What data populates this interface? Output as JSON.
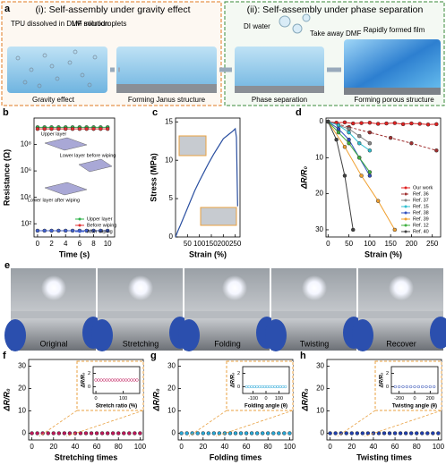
{
  "panels": {
    "a": {
      "label": "a",
      "title_i": "(i): Self-assembly under gravity effect",
      "title_ii": "(ii): Self-assembly under phase separation",
      "tpu": "TPU dissolved in DMF solution",
      "lm": "LM microdroplets",
      "gravity": "Gravity effect",
      "janus": "Forming Janus structure",
      "water": "DI water",
      "dmf": "Take away DMF",
      "film": "Rapidly formed film",
      "phase": "Phase separation",
      "porous": "Forming porous structure"
    },
    "e": {
      "label": "e",
      "frames": [
        "Original",
        "Stretching",
        "Folding",
        "Twisting",
        "Recover"
      ]
    }
  },
  "chart_data": [
    {
      "type": "line",
      "label": "b",
      "xlabel": "Time (s)",
      "ylabel": "Resistance (Ω)",
      "ylog": true,
      "xlim": [
        -0.5,
        11
      ],
      "xticks": [
        0,
        2,
        4,
        6,
        8,
        10
      ],
      "ylim": [
        10,
        10000000000
      ],
      "yticks": [
        {
          "value": 100,
          "label": "10²"
        },
        {
          "value": 10000,
          "label": "10⁴"
        },
        {
          "value": 1000000,
          "label": "10⁶"
        },
        {
          "value": 100000000,
          "label": "10⁸"
        }
      ],
      "x": [
        0,
        1,
        2,
        3,
        4,
        5,
        6,
        7,
        8,
        9,
        10
      ],
      "legend": "lower right",
      "series": [
        {
          "name": "Upper layer",
          "color": "#2db34a",
          "values": [
            2000000000,
            2000000000,
            2000000000,
            2000000000,
            2000000000,
            2000000000,
            2000000000,
            2000000000,
            2000000000,
            2000000000,
            2000000000
          ]
        },
        {
          "name": "Before wiping",
          "color": "#e03030",
          "values": [
            1500000000,
            1500000000,
            1500000000,
            1500000000,
            1500000000,
            1500000000,
            1500000000,
            1500000000,
            1500000000,
            1500000000,
            1500000000
          ]
        },
        {
          "name": "After wiping",
          "color": "#4060d0",
          "values": [
            30,
            30,
            30,
            30,
            30,
            30,
            30,
            30,
            30,
            30,
            30
          ]
        }
      ],
      "annotations": [
        "Upper layer",
        "Lower layer before wiping",
        "Lower layer after wiping"
      ]
    },
    {
      "type": "line",
      "label": "c",
      "xlabel": "Strain (%)",
      "ylabel": "Stress (MPa)",
      "xlim": [
        0,
        270
      ],
      "xticks": [
        50,
        100,
        150,
        200,
        250
      ],
      "ylim": [
        0,
        15.5
      ],
      "yticks": [
        0,
        5,
        10,
        15
      ],
      "x": [
        0,
        10,
        20,
        40,
        60,
        80,
        100,
        120,
        140,
        160,
        180,
        200,
        220,
        240,
        250,
        255,
        260
      ],
      "color": "#2a4fa0",
      "values": [
        0,
        0.8,
        1.5,
        3,
        4.5,
        6,
        7.3,
        8.5,
        9.7,
        10.8,
        11.8,
        12.8,
        13.3,
        13.8,
        14.1,
        13,
        4
      ]
    },
    {
      "type": "line",
      "label": "d",
      "xlabel": "Strain (%)",
      "ylabel": "ΔR/R₀",
      "y_inverted": true,
      "xlim": [
        -5,
        270
      ],
      "xticks": [
        0,
        50,
        100,
        150,
        200,
        250
      ],
      "ylim": [
        -1,
        32
      ],
      "yticks": [
        0,
        10,
        20,
        30
      ],
      "legend": "lower right",
      "series": [
        {
          "name": "Our work",
          "color": "#e02020",
          "x": [
            0,
            20,
            40,
            60,
            80,
            100,
            120,
            140,
            160,
            180,
            200,
            220,
            240,
            260
          ],
          "values": [
            0,
            0.3,
            0.2,
            0.5,
            0.4,
            0.3,
            0.6,
            0.5,
            0.4,
            0.7,
            0.5,
            0.6,
            0.8,
            0.7
          ]
        },
        {
          "name": "Ref. 36",
          "color": "#a03030",
          "dashed": true,
          "x": [
            0,
            50,
            100,
            150,
            200,
            260
          ],
          "values": [
            0,
            1.5,
            3,
            4.5,
            6,
            8
          ]
        },
        {
          "name": "Ref. 37",
          "color": "#888888",
          "x": [
            0,
            25,
            50,
            75,
            100
          ],
          "values": [
            0,
            1,
            2,
            4,
            6
          ]
        },
        {
          "name": "Ref. 15",
          "color": "#30c0d0",
          "x": [
            0,
            25,
            50,
            75,
            100
          ],
          "values": [
            0,
            1,
            3,
            6,
            8
          ]
        },
        {
          "name": "Ref. 38",
          "color": "#3050c0",
          "x": [
            0,
            25,
            50,
            75,
            100
          ],
          "values": [
            0,
            2,
            5,
            10,
            15
          ]
        },
        {
          "name": "Ref. 39",
          "color": "#f0a030",
          "x": [
            0,
            40,
            80,
            120,
            160
          ],
          "values": [
            0,
            7,
            15,
            22,
            30
          ]
        },
        {
          "name": "Ref. 12",
          "color": "#40b040",
          "x": [
            0,
            25,
            50,
            75,
            100
          ],
          "values": [
            0,
            3,
            6,
            10,
            14
          ]
        },
        {
          "name": "Ref. 40",
          "color": "#404040",
          "x": [
            0,
            20,
            40,
            60
          ],
          "values": [
            0,
            5,
            15,
            30
          ]
        }
      ]
    },
    {
      "type": "scatter",
      "label": "f",
      "xlabel": "Stretching times",
      "ylabel": "ΔR/R₀",
      "color": "#c0185a",
      "xlim": [
        -3,
        103
      ],
      "xticks": [
        0,
        20,
        40,
        60,
        80,
        100
      ],
      "ylim": [
        -3,
        33
      ],
      "yticks": [
        0,
        10,
        20,
        30
      ],
      "x": [
        0,
        5,
        10,
        15,
        20,
        25,
        30,
        35,
        40,
        45,
        50,
        55,
        60,
        65,
        70,
        75,
        80,
        85,
        90,
        95,
        100
      ],
      "values": [
        0,
        0,
        0,
        0,
        0,
        0,
        0,
        0,
        0,
        0,
        0,
        0,
        0,
        0,
        0,
        0,
        0,
        0,
        0,
        0,
        0
      ]
    },
    {
      "type": "scatter",
      "xlabel": "Stretch ratio (%)",
      "ylabel": "ΔR/R₀",
      "color": "#c0185a",
      "marker": "open",
      "xlim": [
        -10,
        160
      ],
      "xticks": [
        0,
        100
      ],
      "ylim": [
        -1,
        3
      ],
      "yticks": [
        0,
        2
      ],
      "x": [
        0,
        10,
        20,
        30,
        40,
        50,
        60,
        70,
        80,
        90,
        100,
        110,
        120,
        130,
        140,
        150
      ],
      "values": [
        1,
        1,
        1,
        1,
        1,
        1,
        1,
        1,
        1,
        1,
        1,
        1,
        1,
        1,
        1,
        1
      ]
    },
    {
      "type": "scatter",
      "label": "g",
      "xlabel": "Folding times",
      "ylabel": "ΔR/R₀",
      "color": "#29a8d8",
      "xlim": [
        -3,
        103
      ],
      "xticks": [
        0,
        20,
        40,
        60,
        80,
        100
      ],
      "ylim": [
        -3,
        33
      ],
      "yticks": [
        0,
        10,
        20,
        30
      ],
      "x": [
        0,
        5,
        10,
        15,
        20,
        25,
        30,
        35,
        40,
        45,
        50,
        55,
        60,
        65,
        70,
        75,
        80,
        85,
        90,
        95,
        100
      ],
      "values": [
        0,
        0,
        0,
        0,
        0,
        0,
        0,
        0,
        0,
        0,
        0,
        0,
        0,
        0,
        0,
        0,
        0,
        0,
        0,
        0,
        0
      ]
    },
    {
      "type": "scatter",
      "xlabel": "Folding angle (θ)",
      "ylabel": "ΔR/R₀",
      "color": "#29a8d8",
      "marker": "open",
      "xlim": [
        -180,
        180
      ],
      "xticks": [
        -100,
        0,
        100
      ],
      "ylim": [
        -1,
        3
      ],
      "yticks": [
        0,
        2
      ],
      "x": [
        -150,
        -130,
        -110,
        -90,
        -70,
        -50,
        -30,
        -10,
        10,
        30,
        50,
        70,
        90,
        110,
        130,
        150
      ],
      "values": [
        0,
        0,
        0,
        0,
        0,
        0,
        0,
        0,
        0,
        0,
        0,
        0,
        0,
        0,
        0,
        0
      ]
    },
    {
      "type": "scatter",
      "label": "h",
      "xlabel": "Twisting times",
      "ylabel": "ΔR/R₀",
      "color": "#2040b0",
      "xlim": [
        -3,
        103
      ],
      "xticks": [
        0,
        20,
        40,
        60,
        80,
        100
      ],
      "ylim": [
        -3,
        33
      ],
      "yticks": [
        0,
        10,
        20,
        30
      ],
      "x": [
        0,
        5,
        10,
        15,
        20,
        25,
        30,
        35,
        40,
        45,
        50,
        55,
        60,
        65,
        70,
        75,
        80,
        85,
        90,
        95,
        100
      ],
      "values": [
        0,
        0,
        0,
        0,
        0,
        0,
        0,
        0,
        0,
        0,
        0,
        0,
        0,
        0,
        0,
        0,
        0,
        0,
        0,
        0,
        0
      ]
    },
    {
      "type": "scatter",
      "xlabel": "Twisting angle (θ)",
      "ylabel": "ΔR/R₀",
      "color": "#2040b0",
      "marker": "open",
      "xlim": [
        -300,
        300
      ],
      "xticks": [
        -200,
        0,
        200
      ],
      "ylim": [
        -1,
        3
      ],
      "yticks": [
        0,
        2
      ],
      "x": [
        -250,
        -200,
        -150,
        -100,
        -50,
        0,
        50,
        100,
        150,
        200,
        250
      ],
      "values": [
        0,
        0,
        0,
        0,
        0,
        0,
        0,
        0,
        0,
        0,
        0
      ]
    }
  ]
}
